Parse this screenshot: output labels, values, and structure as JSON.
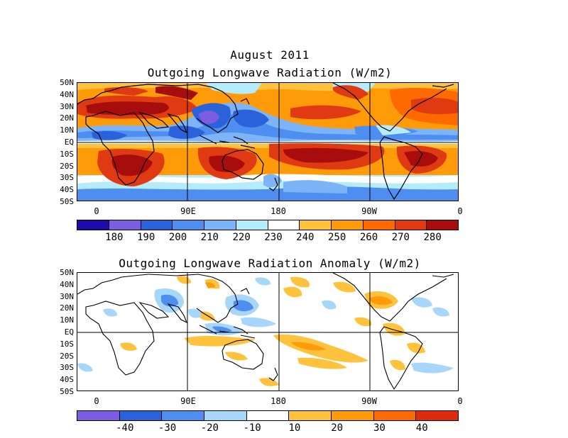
{
  "header": {
    "date": "August 2011"
  },
  "panels": [
    {
      "title": "Outgoing Longwave Radiation (W/m2)",
      "lat_labels": [
        "50N",
        "40N",
        "30N",
        "20N",
        "10N",
        "EQ",
        "10S",
        "20S",
        "30S",
        "40S",
        "50S"
      ],
      "lon_labels": [
        "0",
        "90E",
        "180",
        "90W",
        "0"
      ],
      "colorbar": {
        "colors": [
          "#1e0ca8",
          "#7a5de0",
          "#2a62dc",
          "#4d8ef0",
          "#7db4f8",
          "#b4ecfc",
          "#ffffff",
          "#ffc23c",
          "#ff9a08",
          "#ff6a00",
          "#e03a12",
          "#a80d0d"
        ],
        "labels": [
          "180",
          "190",
          "200",
          "210",
          "220",
          "230",
          "240",
          "250",
          "260",
          "270",
          "280"
        ]
      }
    },
    {
      "title": "Outgoing Longwave Radiation Anomaly (W/m2)",
      "lat_labels": [
        "50N",
        "40N",
        "30N",
        "20N",
        "10N",
        "EQ",
        "10S",
        "20S",
        "30S",
        "40S",
        "50S"
      ],
      "lon_labels": [
        "0",
        "90E",
        "180",
        "90W",
        "0"
      ],
      "colorbar": {
        "colors": [
          "#7a5de0",
          "#2a62dc",
          "#4d8ef0",
          "#a7d6fb",
          "#ffffff",
          "#ffc23c",
          "#ff9a08",
          "#ff6a00",
          "#e02a0e"
        ],
        "labels": [
          "-40",
          "-30",
          "-20",
          "-10",
          "10",
          "20",
          "30",
          "40"
        ]
      }
    }
  ]
}
